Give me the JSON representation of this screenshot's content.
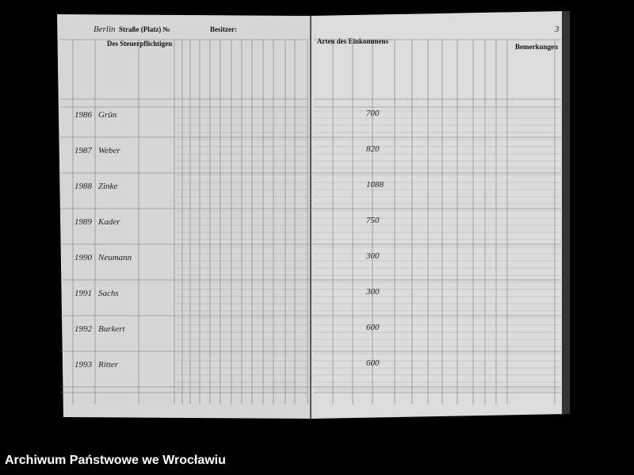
{
  "caption": "Archiwum Państwowe we Wrocławiu",
  "document": {
    "left_page": {
      "street_label": "Straße (Platz) №",
      "owner_label": "Besitzer:",
      "column_group": "Des Steuerpflichtigen"
    },
    "right_page": {
      "page_number": "3",
      "column_group": "Arten des Einkommens",
      "remarks": "Bemerkungen"
    },
    "rows": [
      {
        "number": "1986",
        "name": "Grün",
        "income": "700"
      },
      {
        "number": "1987",
        "name": "Weber",
        "income": "820"
      },
      {
        "number": "1988",
        "name": "Zinke",
        "income": "1088"
      },
      {
        "number": "1989",
        "name": "Kader",
        "income": "750"
      },
      {
        "number": "1990",
        "name": "Neumann",
        "income": "300"
      },
      {
        "number": "1991",
        "name": "Sachs",
        "income": "300"
      },
      {
        "number": "1992",
        "name": "Burkert",
        "income": "600"
      },
      {
        "number": "1993",
        "name": "Ritter",
        "income": "600"
      }
    ]
  }
}
